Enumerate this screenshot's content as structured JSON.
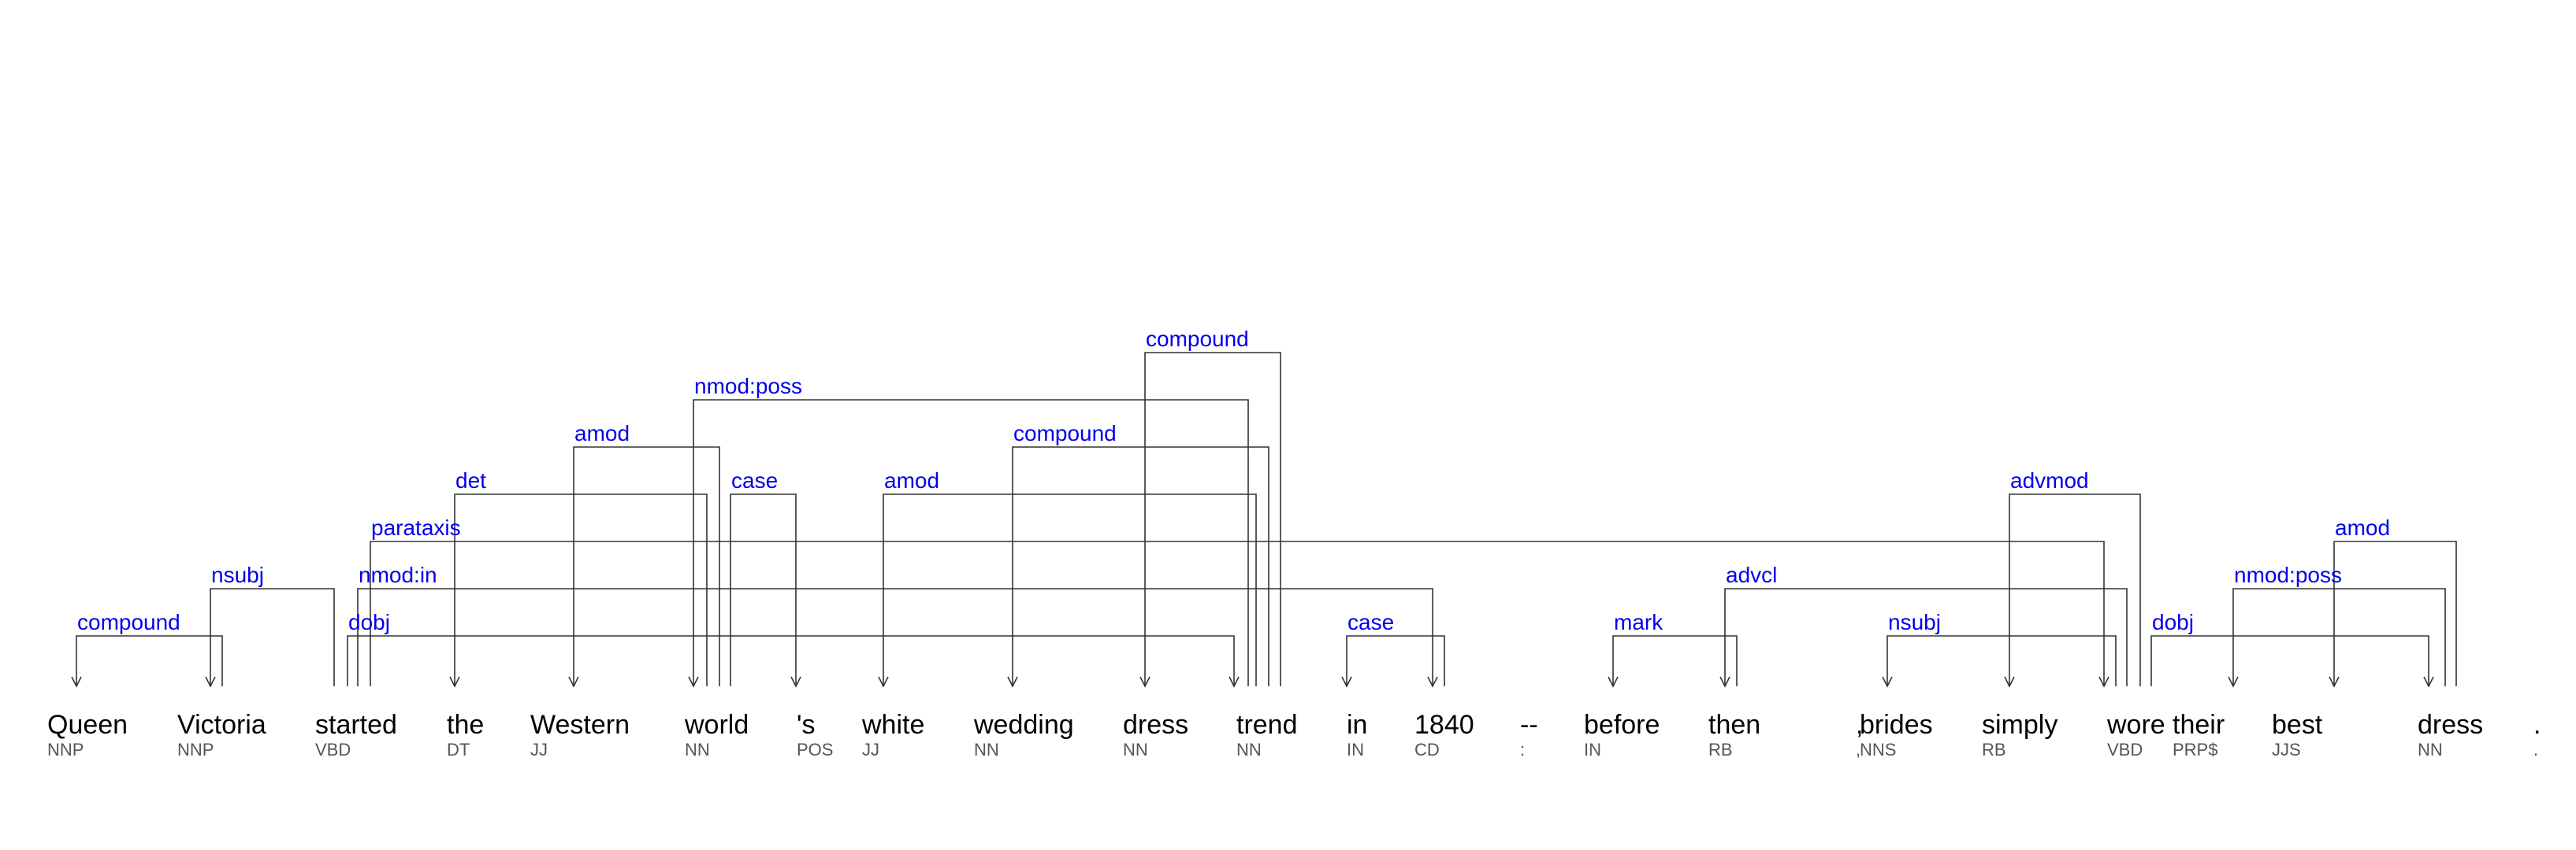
{
  "tokens": [
    {
      "text": "Queen",
      "tag": "NNP"
    },
    {
      "text": "Victoria",
      "tag": "NNP"
    },
    {
      "text": "started",
      "tag": "VBD"
    },
    {
      "text": "the",
      "tag": "DT"
    },
    {
      "text": "Western",
      "tag": "JJ"
    },
    {
      "text": "world",
      "tag": "NN"
    },
    {
      "text": "'s",
      "tag": "POS"
    },
    {
      "text": "white",
      "tag": "JJ"
    },
    {
      "text": "wedding",
      "tag": "NN"
    },
    {
      "text": "dress",
      "tag": "NN"
    },
    {
      "text": "trend",
      "tag": "NN"
    },
    {
      "text": "in",
      "tag": "IN"
    },
    {
      "text": "1840",
      "tag": "CD"
    },
    {
      "text": "--",
      "tag": ":"
    },
    {
      "text": "before",
      "tag": "IN"
    },
    {
      "text": "then",
      "tag": "RB"
    },
    {
      "text": ",",
      "tag": ","
    },
    {
      "text": "brides",
      "tag": "NNS"
    },
    {
      "text": "simply",
      "tag": "RB"
    },
    {
      "text": "wore",
      "tag": "VBD"
    },
    {
      "text": "their",
      "tag": "PRP$"
    },
    {
      "text": "best",
      "tag": "JJS"
    },
    {
      "text": "dress",
      "tag": "NN"
    },
    {
      "text": ".",
      "tag": "."
    }
  ],
  "dependencies": [
    {
      "label": "compound",
      "head": 1,
      "dep": 0
    },
    {
      "label": "nsubj",
      "head": 2,
      "dep": 1
    },
    {
      "label": "dobj",
      "head": 2,
      "dep": 10
    },
    {
      "label": "nmod:in",
      "head": 2,
      "dep": 12
    },
    {
      "label": "parataxis",
      "head": 2,
      "dep": 19
    },
    {
      "label": "det",
      "head": 5,
      "dep": 3
    },
    {
      "label": "amod",
      "head": 5,
      "dep": 4
    },
    {
      "label": "case",
      "head": 5,
      "dep": 6
    },
    {
      "label": "nmod:poss",
      "head": 10,
      "dep": 5
    },
    {
      "label": "amod",
      "head": 10,
      "dep": 7
    },
    {
      "label": "compound",
      "head": 10,
      "dep": 8
    },
    {
      "label": "compound",
      "head": 10,
      "dep": 9
    },
    {
      "label": "case",
      "head": 12,
      "dep": 11
    },
    {
      "label": "mark",
      "head": 15,
      "dep": 14
    },
    {
      "label": "nsubj",
      "head": 19,
      "dep": 17
    },
    {
      "label": "advmod",
      "head": 19,
      "dep": 18
    },
    {
      "label": "advcl",
      "head": 19,
      "dep": 15
    },
    {
      "label": "dobj",
      "head": 19,
      "dep": 22
    },
    {
      "label": "nmod:poss",
      "head": 22,
      "dep": 20
    },
    {
      "label": "amod",
      "head": 22,
      "dep": 21
    }
  ]
}
